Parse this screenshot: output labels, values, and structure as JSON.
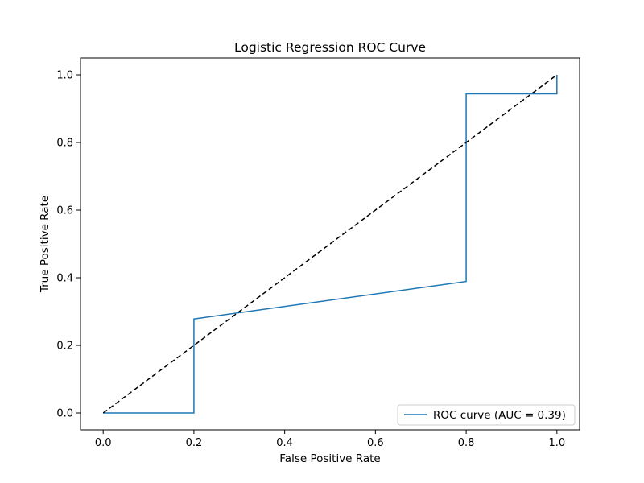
{
  "chart_data": {
    "type": "line",
    "title": "Logistic Regression ROC Curve",
    "xlabel": "False Positive Rate",
    "ylabel": "True Positive Rate",
    "xlim": [
      -0.05,
      1.05
    ],
    "ylim": [
      -0.05,
      1.05
    ],
    "xticks": [
      "0.0",
      "0.2",
      "0.4",
      "0.6",
      "0.8",
      "1.0"
    ],
    "yticks": [
      "0.0",
      "0.2",
      "0.4",
      "0.6",
      "0.8",
      "1.0"
    ],
    "grid": false,
    "legend_position": "lower right",
    "series": [
      {
        "name": "ROC curve (AUC = 0.39)",
        "color": "#1f77b4",
        "line_style": "solid",
        "x": [
          0.0,
          0.2,
          0.2,
          0.8,
          0.8,
          1.0,
          1.0
        ],
        "y": [
          0.0,
          0.0,
          0.278,
          0.389,
          0.944,
          0.944,
          1.0
        ]
      },
      {
        "color": "#000000",
        "line_style": "dashed",
        "x": [
          0.0,
          1.0
        ],
        "y": [
          0.0,
          1.0
        ]
      }
    ]
  }
}
